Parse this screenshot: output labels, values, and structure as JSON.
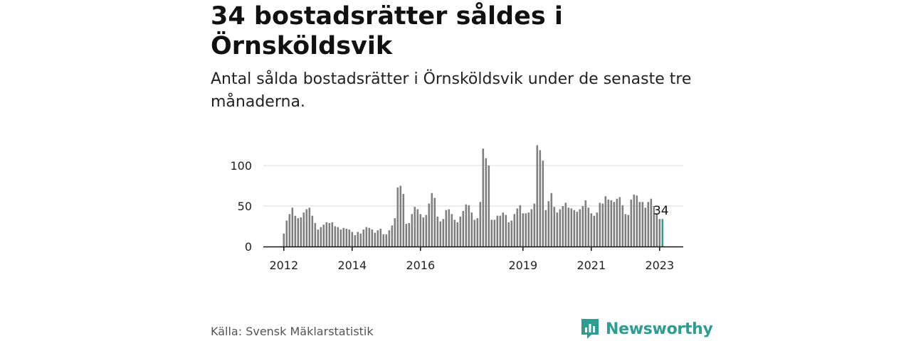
{
  "title": "34 bostadsrätter såldes i Örnsköldsvik",
  "subtitle": "Antal sålda bostadsrätter i Örnsköldsvik under de senaste tre månaderna.",
  "source": "Källa: Svensk Mäklarstatistik",
  "brand": {
    "name": "Newsworthy",
    "icon": "newsworthy-logo-icon"
  },
  "colors": {
    "bar": "#808080",
    "highlight": "#2e9d91",
    "grid": "#dddddd",
    "axis": "#111111"
  },
  "chart_data": {
    "type": "bar",
    "start": "2012-01",
    "x_tick_labels": [
      "2012",
      "2014",
      "2016",
      "2019",
      "2021",
      "2023"
    ],
    "y_ticks": [
      0,
      50,
      100
    ],
    "ylim": [
      0,
      130
    ],
    "grid": "horizontal",
    "values": [
      16,
      32,
      40,
      48,
      38,
      35,
      36,
      42,
      46,
      48,
      38,
      29,
      21,
      24,
      27,
      30,
      29,
      30,
      25,
      24,
      21,
      23,
      22,
      21,
      18,
      14,
      18,
      16,
      21,
      24,
      23,
      21,
      17,
      20,
      22,
      15,
      15,
      20,
      26,
      35,
      73,
      75,
      65,
      28,
      29,
      40,
      49,
      46,
      40,
      36,
      39,
      53,
      66,
      60,
      37,
      31,
      34,
      45,
      46,
      40,
      33,
      30,
      37,
      44,
      52,
      51,
      42,
      33,
      35,
      55,
      121,
      109,
      100,
      33,
      33,
      38,
      38,
      42,
      39,
      30,
      32,
      40,
      47,
      51,
      41,
      41,
      42,
      46,
      53,
      125,
      119,
      106,
      45,
      56,
      66,
      49,
      42,
      46,
      50,
      54,
      48,
      47,
      45,
      43,
      46,
      50,
      57,
      48,
      41,
      38,
      42,
      54,
      53,
      62,
      58,
      57,
      55,
      59,
      61,
      51,
      40,
      39,
      58,
      64,
      63,
      55,
      55,
      48,
      55,
      59,
      50,
      41,
      34,
      34
    ],
    "highlight_last": 1,
    "last_label": "34"
  }
}
